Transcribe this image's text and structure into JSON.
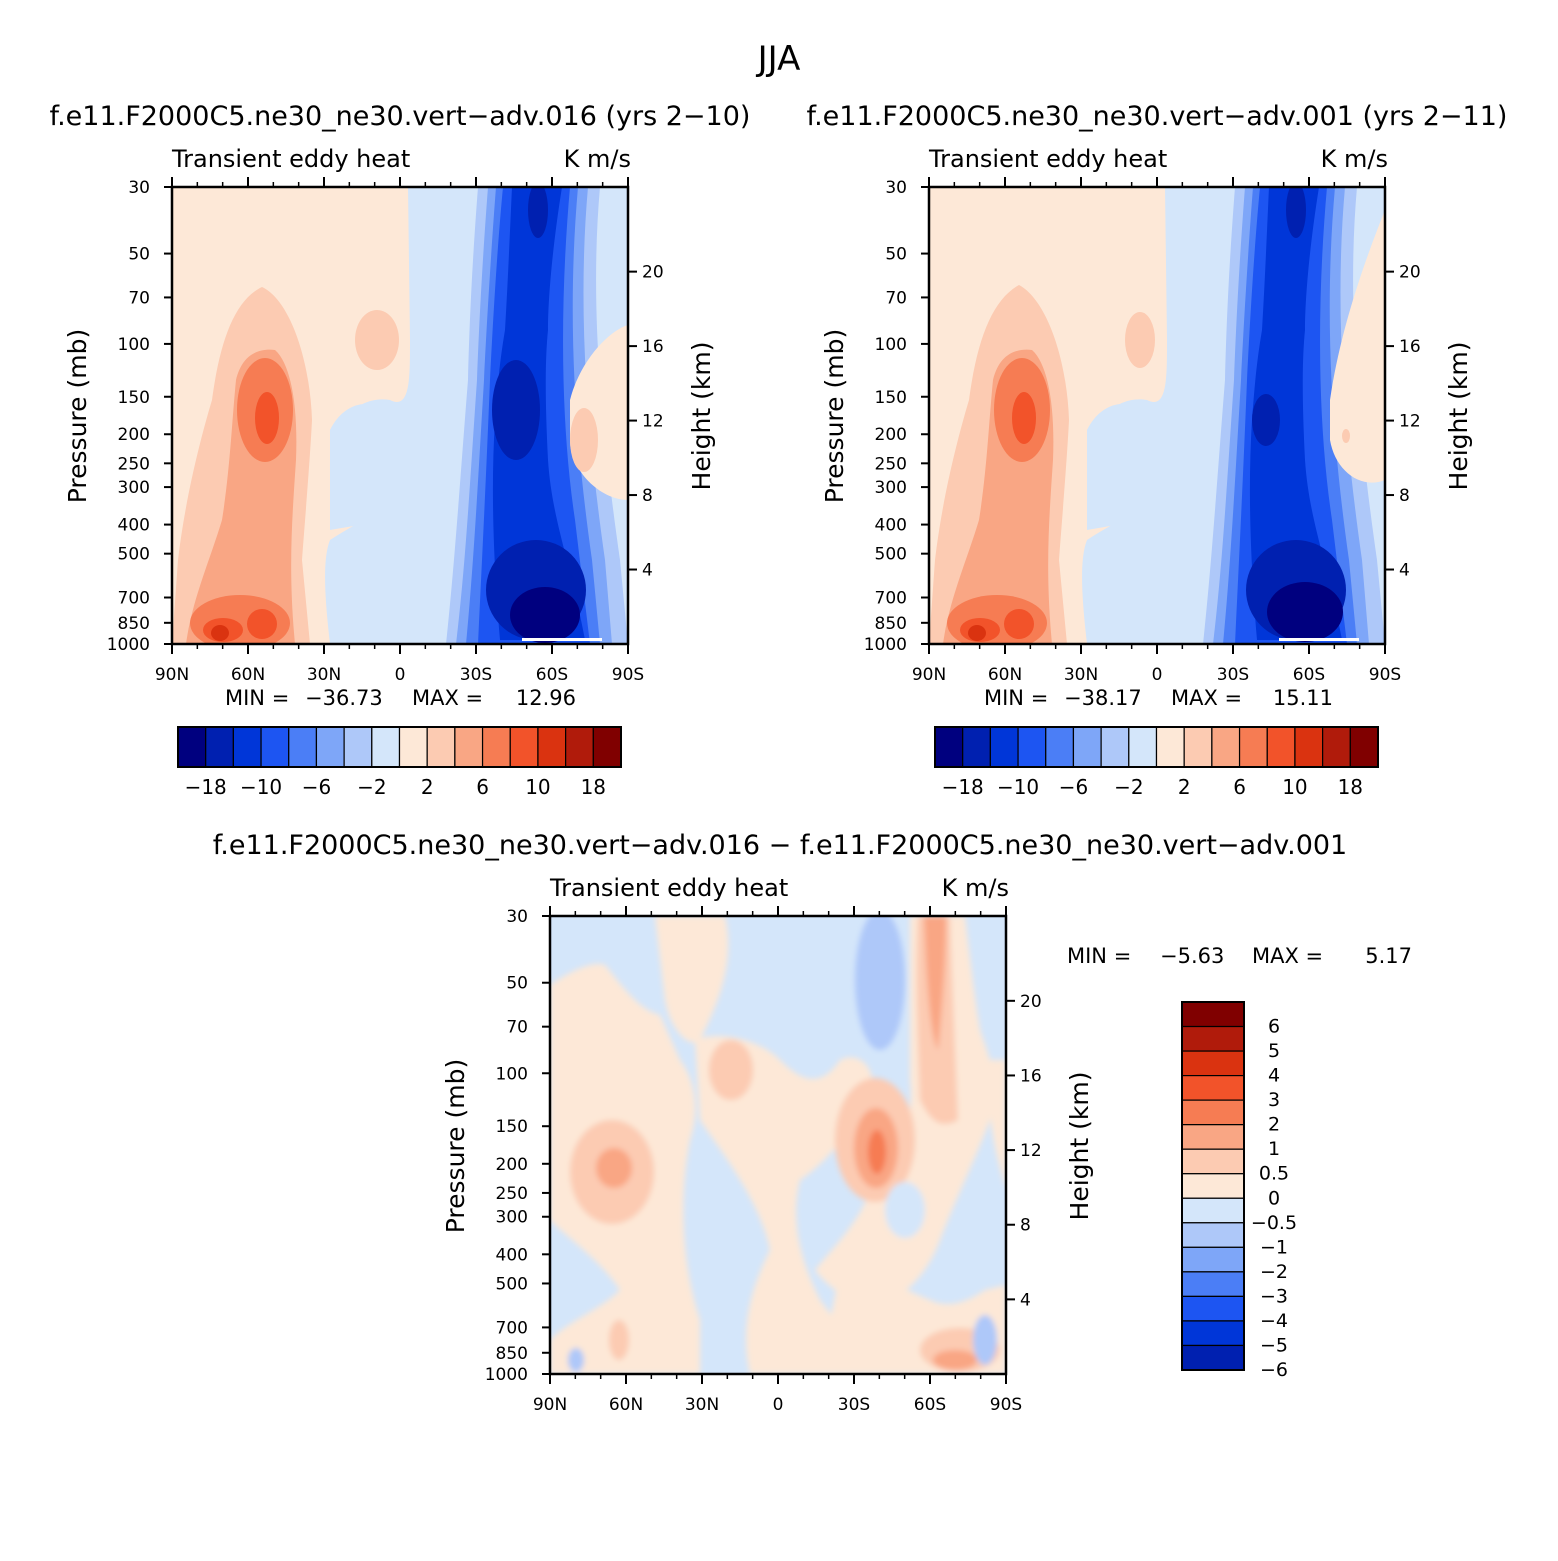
{
  "figure": {
    "title": "JJA"
  },
  "chart_data": [
    {
      "type": "heatmap",
      "title": "f.e11.F2000C5.ne30_ne30.vert-adv.016 (yrs 2-10)",
      "left_label": "Transient eddy heat",
      "right_label": "K m/s",
      "ylabel": "Pressure (mb)",
      "ylabel_right": "Height (km)",
      "x_ticks": [
        "90N",
        "60N",
        "30N",
        "0",
        "30S",
        "60S",
        "90S"
      ],
      "y_ticks": [
        "30",
        "50",
        "70",
        "100",
        "150",
        "200",
        "250",
        "300",
        "400",
        "500",
        "700",
        "850",
        "1000"
      ],
      "height_ticks": [
        "20",
        "16",
        "12",
        "8",
        "4"
      ],
      "scale": "log-pressure",
      "ylim": [
        1000,
        30
      ],
      "min_label": "MIN =",
      "max_label": "MAX =",
      "min": "-36.73",
      "max": "12.96",
      "colorbar_labels": [
        "-18",
        "-10",
        "-6",
        "-2",
        "2",
        "6",
        "10",
        "18"
      ]
    },
    {
      "type": "heatmap",
      "title": "f.e11.F2000C5.ne30_ne30.vert-adv.001 (yrs 2-11)",
      "left_label": "Transient eddy heat",
      "right_label": "K m/s",
      "ylabel": "Pressure (mb)",
      "ylabel_right": "Height (km)",
      "x_ticks": [
        "90N",
        "60N",
        "30N",
        "0",
        "30S",
        "60S",
        "90S"
      ],
      "y_ticks": [
        "30",
        "50",
        "70",
        "100",
        "150",
        "200",
        "250",
        "300",
        "400",
        "500",
        "700",
        "850",
        "1000"
      ],
      "height_ticks": [
        "20",
        "16",
        "12",
        "8",
        "4"
      ],
      "scale": "log-pressure",
      "ylim": [
        1000,
        30
      ],
      "min_label": "MIN =",
      "max_label": "MAX =",
      "min": "-38.17",
      "max": "15.11",
      "colorbar_labels": [
        "-18",
        "-10",
        "-6",
        "-2",
        "2",
        "6",
        "10",
        "18"
      ]
    },
    {
      "type": "heatmap",
      "title": "f.e11.F2000C5.ne30_ne30.vert-adv.016 - f.e11.F2000C5.ne30_ne30.vert-adv.001",
      "left_label": "Transient eddy heat",
      "right_label": "K m/s",
      "ylabel": "Pressure (mb)",
      "ylabel_right": "Height (km)",
      "x_ticks": [
        "90N",
        "60N",
        "30N",
        "0",
        "30S",
        "60S",
        "90S"
      ],
      "y_ticks": [
        "30",
        "50",
        "70",
        "100",
        "150",
        "200",
        "250",
        "300",
        "400",
        "500",
        "700",
        "850",
        "1000"
      ],
      "height_ticks": [
        "20",
        "16",
        "12",
        "8",
        "4"
      ],
      "scale": "log-pressure",
      "ylim": [
        1000,
        30
      ],
      "min_label": "MIN =",
      "max_label": "MAX =",
      "min": "-5.63",
      "max": "5.17",
      "colorbar_labels": [
        "6",
        "5",
        "4",
        "3",
        "2",
        "1",
        "0.5",
        "0",
        "-0.5",
        "-1",
        "-2",
        "-3",
        "-4",
        "-5",
        "-6"
      ]
    }
  ],
  "palette": {
    "bg": "#ffffff",
    "levels": [
      "#00007f",
      "#0020b0",
      "#0036d8",
      "#1d55f2",
      "#4b7ef6",
      "#7ea6f8",
      "#aec8f9",
      "#d4e6fa",
      "#fde8d7",
      "#fccbb2",
      "#f9a684",
      "#f67c53",
      "#f2532a",
      "#da3310",
      "#b01b0b",
      "#800000"
    ]
  }
}
